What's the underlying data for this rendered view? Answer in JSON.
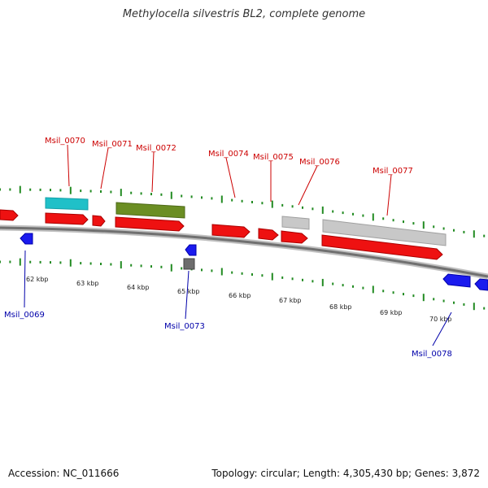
{
  "title": "Methylocella silvestris BL2, complete genome",
  "footer": {
    "accession": "Accession: NC_011666",
    "summary": "Topology: circular; Length: 4,305,430 bp; Genes: 3,872"
  },
  "colors": {
    "forward_gene": "#ff0000",
    "reverse_gene": "#0000ee",
    "forward_label": "#cc0000",
    "reverse_label": "#0000aa",
    "green_feature": "#6b8e23",
    "cyan_feature": "#20c0c8",
    "gray_feature": "#bbbbbb",
    "dark_gray_feature": "#777777",
    "tick_green": "#228b22",
    "backbone": "#888888"
  },
  "scale_labels": [
    "62 kbp",
    "63 kbp",
    "64 kbp",
    "65 kbp",
    "66 kbp",
    "67 kbp",
    "68 kbp",
    "69 kbp",
    "70 kbp"
  ],
  "forward_gene_labels": [
    "Msil_0070",
    "Msil_0071",
    "Msil_0072",
    "Msil_0074",
    "Msil_0075",
    "Msil_0076",
    "Msil_0077"
  ],
  "reverse_gene_labels": [
    "Msil_0069",
    "Msil_0073",
    "Msil_0078"
  ]
}
